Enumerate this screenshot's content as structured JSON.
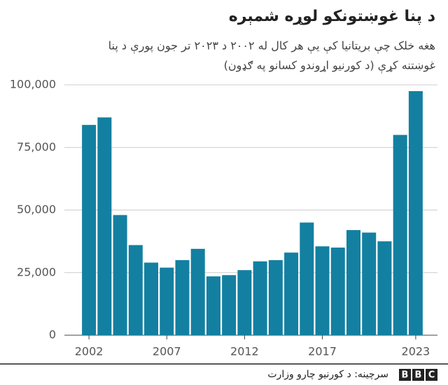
{
  "chart_data": {
    "type": "bar",
    "title": "د پنا غوښتونکو لوړه شمېره",
    "subtitle": [
      "هغه خلک چې بریتانیا کې یې هر کال له ۲۰۰۲ د ۲۰۲۳ تر جون پورې د پنا",
      "غوښتنه کړې (د کورنیو اړوندو کسانو په ګډون)"
    ],
    "x": [
      2002,
      2003,
      2004,
      2005,
      2006,
      2007,
      2008,
      2009,
      2010,
      2011,
      2012,
      2013,
      2014,
      2015,
      2016,
      2017,
      2018,
      2019,
      2020,
      2021,
      2022,
      2023
    ],
    "values": [
      84000,
      87000,
      48000,
      36000,
      29000,
      27000,
      30000,
      34500,
      23500,
      24000,
      26000,
      29500,
      30000,
      33000,
      45000,
      35500,
      35000,
      42000,
      41000,
      37500,
      80000,
      97500
    ],
    "color": "#1380a1",
    "xlim": [
      2001.5,
      2023.5
    ],
    "xticks": [
      2002,
      2007,
      2012,
      2017,
      2023
    ],
    "ylim": [
      0,
      100000
    ],
    "yticks": [
      0,
      {
        "value": 25000,
        "label": "25,000"
      },
      {
        "value": 50000,
        "label": "50,000"
      },
      {
        "value": 75000,
        "label": "75,000"
      },
      {
        "value": 100000,
        "label": "100,000"
      }
    ],
    "grid": true,
    "source": "سرچینه: د کورنیو چارو وزارت",
    "logo": [
      "B",
      "B",
      "C"
    ]
  }
}
